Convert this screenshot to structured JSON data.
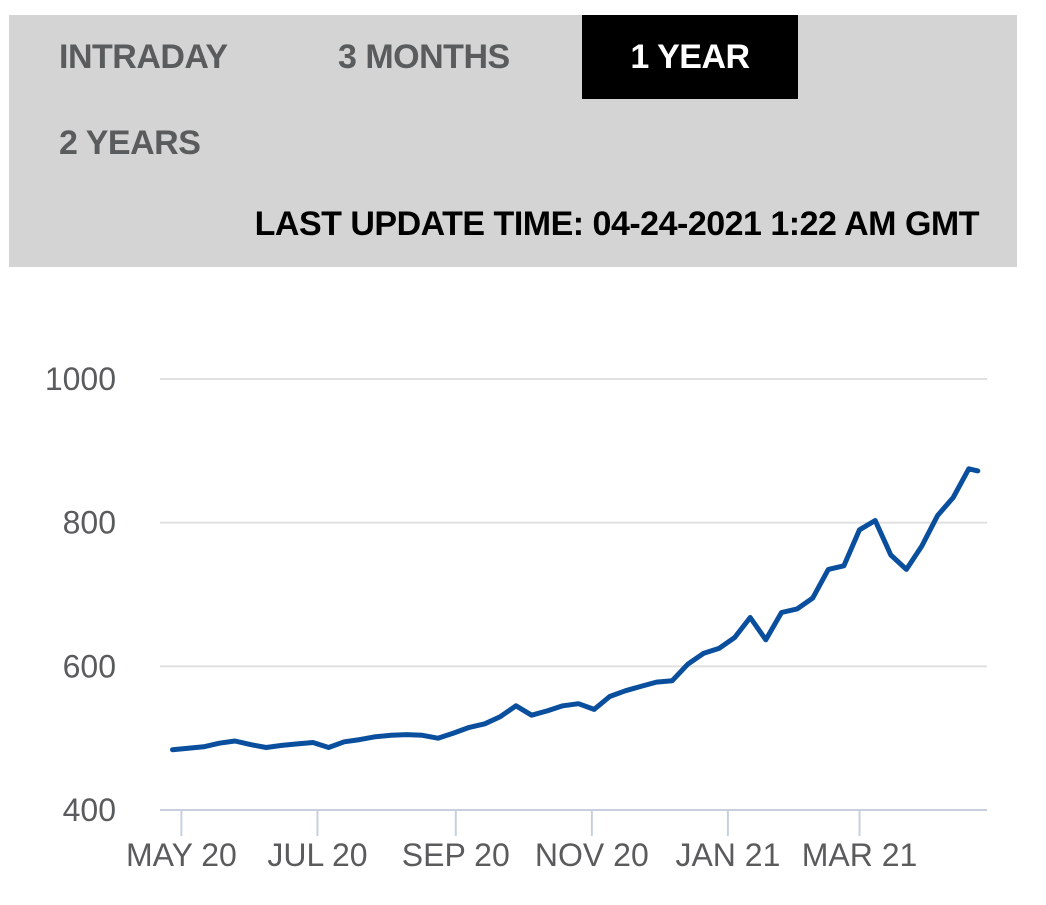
{
  "tabs": [
    {
      "label": "INTRADAY",
      "active": false
    },
    {
      "label": "3 MONTHS",
      "active": false
    },
    {
      "label": "1 YEAR",
      "active": true
    },
    {
      "label": "2 YEARS",
      "active": false
    }
  ],
  "last_update": "LAST UPDATE TIME: 04-24-2021 1:22 AM GMT",
  "colors": {
    "line": "#0a4f9e",
    "grid": "#e0e0e0",
    "axis": "#c8d0e0",
    "topbar": "#d3d4d3"
  },
  "chart_data": {
    "type": "line",
    "title": "",
    "xlabel": "",
    "ylabel": "",
    "ylim": [
      400,
      1000
    ],
    "yticks": [
      400,
      600,
      800,
      1000
    ],
    "xlim": [
      "2020-04-25",
      "2021-04-24"
    ],
    "xticks": [
      {
        "label": "MAY 20",
        "date": "2020-05-01"
      },
      {
        "label": "JUL 20",
        "date": "2020-07-01"
      },
      {
        "label": "SEP 20",
        "date": "2020-09-01"
      },
      {
        "label": "NOV 20",
        "date": "2020-11-01"
      },
      {
        "label": "JAN 21",
        "date": "2021-01-01"
      },
      {
        "label": "MAR 21",
        "date": "2021-03-01"
      }
    ],
    "grid": true,
    "series": [
      {
        "name": "",
        "points": [
          [
            "2020-04-27",
            484
          ],
          [
            "2020-05-04",
            486
          ],
          [
            "2020-05-11",
            488
          ],
          [
            "2020-05-18",
            493
          ],
          [
            "2020-05-25",
            496
          ],
          [
            "2020-06-01",
            491
          ],
          [
            "2020-06-08",
            487
          ],
          [
            "2020-06-15",
            490
          ],
          [
            "2020-06-22",
            492
          ],
          [
            "2020-06-29",
            494
          ],
          [
            "2020-07-06",
            487
          ],
          [
            "2020-07-13",
            495
          ],
          [
            "2020-07-20",
            498
          ],
          [
            "2020-07-27",
            502
          ],
          [
            "2020-08-03",
            504
          ],
          [
            "2020-08-10",
            505
          ],
          [
            "2020-08-17",
            504
          ],
          [
            "2020-08-24",
            500
          ],
          [
            "2020-08-31",
            507
          ],
          [
            "2020-09-07",
            515
          ],
          [
            "2020-09-14",
            520
          ],
          [
            "2020-09-21",
            530
          ],
          [
            "2020-09-28",
            545
          ],
          [
            "2020-10-05",
            532
          ],
          [
            "2020-10-12",
            538
          ],
          [
            "2020-10-19",
            545
          ],
          [
            "2020-10-26",
            548
          ],
          [
            "2020-11-02",
            540
          ],
          [
            "2020-11-09",
            558
          ],
          [
            "2020-11-16",
            566
          ],
          [
            "2020-11-23",
            572
          ],
          [
            "2020-11-30",
            578
          ],
          [
            "2020-12-07",
            580
          ],
          [
            "2020-12-14",
            603
          ],
          [
            "2020-12-21",
            618
          ],
          [
            "2020-12-28",
            625
          ],
          [
            "2021-01-04",
            640
          ],
          [
            "2021-01-11",
            668
          ],
          [
            "2021-01-18",
            637
          ],
          [
            "2021-01-25",
            675
          ],
          [
            "2021-02-01",
            680
          ],
          [
            "2021-02-08",
            695
          ],
          [
            "2021-02-15",
            735
          ],
          [
            "2021-02-22",
            740
          ],
          [
            "2021-03-01",
            790
          ],
          [
            "2021-03-08",
            803
          ],
          [
            "2021-03-15",
            755
          ],
          [
            "2021-03-22",
            735
          ],
          [
            "2021-03-29",
            768
          ],
          [
            "2021-04-05",
            810
          ],
          [
            "2021-04-12",
            835
          ],
          [
            "2021-04-19",
            875
          ],
          [
            "2021-04-23",
            872
          ]
        ]
      }
    ]
  }
}
